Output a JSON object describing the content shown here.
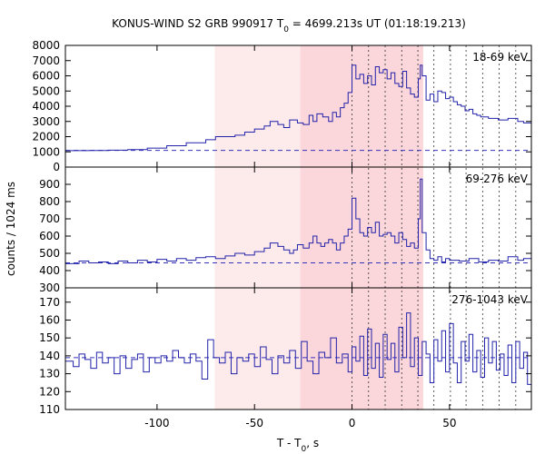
{
  "chart_data": {
    "type": "line",
    "title": "KONUS-WIND S2 GRB 990917 T",
    "title_sub": "0",
    "title_rest": " = 4699.213s UT (01:18:19.213)",
    "xlabel": "T - T",
    "xlabel_sub": "0",
    "xlabel_rest": ", s",
    "ylabel": "counts / 1024 ms",
    "xlim": [
      -147,
      92
    ],
    "x_ticks": [
      -100,
      -50,
      0,
      50
    ],
    "x_tick_labels": [
      "-100",
      "-50",
      "0",
      "50"
    ],
    "shaded_regions": [
      {
        "from": -70.4,
        "to": -26.5,
        "color": "#fdeaea"
      },
      {
        "from": -26.5,
        "to": 36.5,
        "color": "#fbd6da"
      }
    ],
    "markers": [
      0,
      8.5,
      17,
      25.5,
      33.8,
      42,
      50.5,
      58.5,
      67,
      75.5,
      84
    ],
    "series": [
      {
        "name": "18-69 keV",
        "ylim": [
          0,
          8000
        ],
        "yticks": [
          0,
          1000,
          2000,
          3000,
          4000,
          5000,
          6000,
          7000,
          8000
        ],
        "background": 1100,
        "points": [
          [
            -147,
            1080
          ],
          [
            -135,
            1090
          ],
          [
            -125,
            1110
          ],
          [
            -115,
            1150
          ],
          [
            -105,
            1250
          ],
          [
            -95,
            1400
          ],
          [
            -85,
            1600
          ],
          [
            -75,
            1800
          ],
          [
            -70,
            2000
          ],
          [
            -60,
            2100
          ],
          [
            -55,
            2300
          ],
          [
            -50,
            2500
          ],
          [
            -45,
            2700
          ],
          [
            -42,
            3000
          ],
          [
            -38,
            2800
          ],
          [
            -35,
            2600
          ],
          [
            -32,
            3100
          ],
          [
            -28,
            2900
          ],
          [
            -25,
            2800
          ],
          [
            -22,
            3400
          ],
          [
            -20,
            3000
          ],
          [
            -18,
            3500
          ],
          [
            -15,
            3300
          ],
          [
            -12,
            3000
          ],
          [
            -10,
            3600
          ],
          [
            -8,
            3300
          ],
          [
            -6,
            3900
          ],
          [
            -4,
            4200
          ],
          [
            -2,
            4900
          ],
          [
            0,
            6700
          ],
          [
            2,
            5800
          ],
          [
            4,
            6100
          ],
          [
            6,
            5500
          ],
          [
            8,
            6000
          ],
          [
            10,
            5400
          ],
          [
            12,
            6600
          ],
          [
            14,
            6200
          ],
          [
            16,
            6400
          ],
          [
            18,
            5800
          ],
          [
            20,
            6200
          ],
          [
            22,
            5500
          ],
          [
            24,
            5300
          ],
          [
            26,
            6300
          ],
          [
            28,
            5200
          ],
          [
            30,
            4800
          ],
          [
            32,
            4600
          ],
          [
            34,
            5800
          ],
          [
            35,
            6700
          ],
          [
            36,
            6000
          ],
          [
            38,
            4400
          ],
          [
            40,
            4800
          ],
          [
            42,
            4300
          ],
          [
            44,
            5000
          ],
          [
            46,
            4900
          ],
          [
            48,
            4500
          ],
          [
            50,
            4600
          ],
          [
            52,
            4300
          ],
          [
            54,
            4100
          ],
          [
            56,
            4000
          ],
          [
            58,
            3700
          ],
          [
            60,
            3800
          ],
          [
            62,
            3500
          ],
          [
            64,
            3400
          ],
          [
            66,
            3300
          ],
          [
            70,
            3200
          ],
          [
            75,
            3100
          ],
          [
            80,
            3200
          ],
          [
            85,
            3000
          ],
          [
            88,
            2900
          ],
          [
            92,
            2900
          ]
        ]
      },
      {
        "name": "69-276 keV",
        "ylim": [
          300,
          1000
        ],
        "yticks": [
          300,
          400,
          500,
          600,
          700,
          800,
          900
        ],
        "background": 445,
        "points": [
          [
            -147,
            440
          ],
          [
            -140,
            455
          ],
          [
            -135,
            445
          ],
          [
            -130,
            450
          ],
          [
            -125,
            440
          ],
          [
            -120,
            455
          ],
          [
            -115,
            445
          ],
          [
            -110,
            460
          ],
          [
            -105,
            450
          ],
          [
            -100,
            465
          ],
          [
            -95,
            455
          ],
          [
            -90,
            470
          ],
          [
            -85,
            460
          ],
          [
            -80,
            475
          ],
          [
            -75,
            480
          ],
          [
            -70,
            470
          ],
          [
            -65,
            485
          ],
          [
            -60,
            500
          ],
          [
            -55,
            490
          ],
          [
            -50,
            510
          ],
          [
            -45,
            530
          ],
          [
            -42,
            560
          ],
          [
            -38,
            540
          ],
          [
            -35,
            520
          ],
          [
            -32,
            500
          ],
          [
            -30,
            520
          ],
          [
            -28,
            550
          ],
          [
            -25,
            530
          ],
          [
            -22,
            560
          ],
          [
            -20,
            600
          ],
          [
            -18,
            560
          ],
          [
            -16,
            540
          ],
          [
            -14,
            560
          ],
          [
            -12,
            580
          ],
          [
            -10,
            560
          ],
          [
            -8,
            520
          ],
          [
            -6,
            560
          ],
          [
            -4,
            600
          ],
          [
            -2,
            640
          ],
          [
            0,
            820
          ],
          [
            2,
            700
          ],
          [
            4,
            620
          ],
          [
            6,
            600
          ],
          [
            8,
            650
          ],
          [
            10,
            620
          ],
          [
            12,
            680
          ],
          [
            14,
            600
          ],
          [
            16,
            610
          ],
          [
            18,
            620
          ],
          [
            20,
            600
          ],
          [
            22,
            560
          ],
          [
            24,
            620
          ],
          [
            26,
            580
          ],
          [
            28,
            540
          ],
          [
            30,
            560
          ],
          [
            32,
            530
          ],
          [
            34,
            700
          ],
          [
            35,
            930
          ],
          [
            36,
            620
          ],
          [
            38,
            520
          ],
          [
            40,
            470
          ],
          [
            42,
            460
          ],
          [
            44,
            480
          ],
          [
            46,
            450
          ],
          [
            48,
            470
          ],
          [
            50,
            460
          ],
          [
            55,
            455
          ],
          [
            60,
            470
          ],
          [
            65,
            450
          ],
          [
            70,
            460
          ],
          [
            75,
            455
          ],
          [
            80,
            480
          ],
          [
            85,
            460
          ],
          [
            88,
            470
          ],
          [
            92,
            460
          ]
        ]
      },
      {
        "name": "276-1043 keV",
        "ylim": [
          110,
          178
        ],
        "yticks": [
          110,
          120,
          130,
          140,
          150,
          160,
          170
        ],
        "background": 139,
        "points": [
          [
            -147,
            137
          ],
          [
            -143,
            134
          ],
          [
            -140,
            141
          ],
          [
            -137,
            138
          ],
          [
            -134,
            133
          ],
          [
            -131,
            142
          ],
          [
            -128,
            136
          ],
          [
            -125,
            139
          ],
          [
            -122,
            130
          ],
          [
            -119,
            140
          ],
          [
            -116,
            133
          ],
          [
            -113,
            138
          ],
          [
            -110,
            141
          ],
          [
            -107,
            131
          ],
          [
            -104,
            139
          ],
          [
            -101,
            136
          ],
          [
            -98,
            140
          ],
          [
            -95,
            137
          ],
          [
            -92,
            143
          ],
          [
            -89,
            139
          ],
          [
            -86,
            136
          ],
          [
            -83,
            141
          ],
          [
            -80,
            137
          ],
          [
            -77,
            127
          ],
          [
            -74,
            149
          ],
          [
            -71,
            139
          ],
          [
            -68,
            136
          ],
          [
            -65,
            142
          ],
          [
            -62,
            130
          ],
          [
            -59,
            139
          ],
          [
            -56,
            137
          ],
          [
            -53,
            141
          ],
          [
            -50,
            134
          ],
          [
            -47,
            145
          ],
          [
            -44,
            138
          ],
          [
            -41,
            130
          ],
          [
            -38,
            140
          ],
          [
            -35,
            136
          ],
          [
            -32,
            143
          ],
          [
            -29,
            133
          ],
          [
            -26,
            148
          ],
          [
            -23,
            137
          ],
          [
            -20,
            130
          ],
          [
            -17,
            142
          ],
          [
            -14,
            139
          ],
          [
            -11,
            150
          ],
          [
            -8,
            136
          ],
          [
            -5,
            141
          ],
          [
            -2,
            131
          ],
          [
            0,
            145
          ],
          [
            2,
            137
          ],
          [
            4,
            151
          ],
          [
            6,
            129
          ],
          [
            8,
            155
          ],
          [
            10,
            133
          ],
          [
            12,
            147
          ],
          [
            14,
            128
          ],
          [
            16,
            152
          ],
          [
            18,
            138
          ],
          [
            20,
            147
          ],
          [
            22,
            131
          ],
          [
            24,
            156
          ],
          [
            26,
            139
          ],
          [
            28,
            164
          ],
          [
            30,
            134
          ],
          [
            32,
            150
          ],
          [
            34,
            129
          ],
          [
            36,
            148
          ],
          [
            38,
            141
          ],
          [
            40,
            125
          ],
          [
            42,
            149
          ],
          [
            44,
            137
          ],
          [
            46,
            154
          ],
          [
            48,
            131
          ],
          [
            50,
            158
          ],
          [
            52,
            136
          ],
          [
            54,
            125
          ],
          [
            56,
            148
          ],
          [
            58,
            137
          ],
          [
            60,
            152
          ],
          [
            62,
            131
          ],
          [
            64,
            143
          ],
          [
            66,
            128
          ],
          [
            68,
            150
          ],
          [
            70,
            136
          ],
          [
            72,
            148
          ],
          [
            74,
            132
          ],
          [
            76,
            141
          ],
          [
            78,
            129
          ],
          [
            80,
            146
          ],
          [
            82,
            125
          ],
          [
            84,
            148
          ],
          [
            86,
            133
          ],
          [
            88,
            142
          ],
          [
            90,
            124
          ],
          [
            92,
            137
          ]
        ]
      }
    ]
  }
}
